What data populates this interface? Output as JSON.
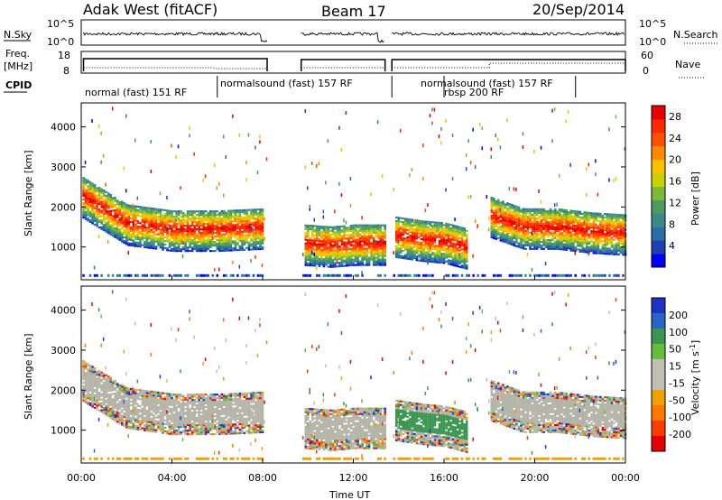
{
  "header": {
    "station": "Adak West (fitACF)",
    "beam": "Beam 17",
    "date": "20/Sep/2014"
  },
  "status_panel": {
    "nsky_label": "N.Sky",
    "nsearch_label": "N.Search",
    "noise_ticks_left": [
      "10^5",
      "10^0"
    ],
    "noise_ticks_right": [
      "10^5",
      "10^0"
    ],
    "freq_label_line1": "Freq.",
    "freq_label_line2": "[MHz]",
    "freq_ticks": [
      "18",
      "8"
    ],
    "nave_label": "Nave",
    "nave_ticks": [
      "60",
      "0"
    ],
    "cpid_label": "CPID",
    "cpid_segments": [
      {
        "label": "normal (fast) 151 RF",
        "start_h": 0.0,
        "end_h": 6.0
      },
      {
        "label": "normalsound (fast) 157 RF",
        "start_h": 6.0,
        "end_h": 13.7
      },
      {
        "label": "rbsp 200 RF",
        "start_h": 16.0,
        "end_h": 16.0
      },
      {
        "label": "normalsound (fast) 157 RF",
        "start_h": 13.7,
        "end_h": 21.8
      }
    ]
  },
  "chart_data": [
    {
      "type": "heatmap",
      "title": "Power",
      "ylabel": "Slant Range [km]",
      "xlabel": "Time UT",
      "xlim_hours": [
        0,
        24
      ],
      "ylim": [
        180,
        4600
      ],
      "yticks": [
        1000,
        2000,
        3000,
        4000
      ],
      "xtick_labels": [
        "00:00",
        "04:00",
        "08:00",
        "12:00",
        "16:00",
        "20:00",
        "00:00"
      ],
      "colorbar": {
        "label": "Power [dB]",
        "ticks": [
          "4",
          "8",
          "12",
          "16",
          "20",
          "24",
          "28"
        ],
        "colors": [
          "#0000ff",
          "#1e3fb0",
          "#2a6ea8",
          "#3a8a8a",
          "#4e9a5c",
          "#7cba3c",
          "#c8d200",
          "#ffc000",
          "#ff8c00",
          "#ff5000",
          "#ff2800",
          "#e60000"
        ]
      },
      "echo_bands": [
        {
          "t": [
            0.0,
            2.0,
            4.0,
            6.0,
            8.0
          ],
          "range": [
            2300,
            1600,
            1450,
            1450,
            1500
          ]
        },
        {
          "t": [
            9.8,
            11.0,
            12.0,
            13.4
          ],
          "range": [
            1100,
            1050,
            1100,
            1100
          ]
        },
        {
          "t": [
            13.8,
            15.0,
            16.0,
            17.0
          ],
          "range": [
            1300,
            1200,
            1150,
            1000
          ]
        },
        {
          "t": [
            18.0,
            19.5,
            21.0,
            22.5,
            24.0
          ],
          "range": [
            1800,
            1500,
            1500,
            1400,
            1350
          ]
        }
      ]
    },
    {
      "type": "heatmap",
      "title": "Velocity",
      "ylabel": "Slant Range [km]",
      "xlabel": "Time UT",
      "xlim_hours": [
        0,
        24
      ],
      "ylim": [
        180,
        4600
      ],
      "yticks": [
        1000,
        2000,
        3000,
        4000
      ],
      "xtick_labels": [
        "00:00",
        "04:00",
        "08:00",
        "12:00",
        "16:00",
        "20:00",
        "00:00"
      ],
      "colorbar": {
        "label": "Velocity [m s^-1]",
        "ticks": [
          "200",
          "100",
          "50",
          "15",
          "-15",
          "-50",
          "-100",
          "-200"
        ],
        "colors": [
          "#1e32c8",
          "#2a64c8",
          "#3a9650",
          "#64be3c",
          "#c0c0b4",
          "#c0c0b4",
          "#f0a000",
          "#ff7800",
          "#ff3c00",
          "#e60000"
        ]
      }
    }
  ],
  "colors": {
    "frame": "#000000",
    "ground_scatter": "#b4b4a8",
    "gap": "#ffffff"
  }
}
